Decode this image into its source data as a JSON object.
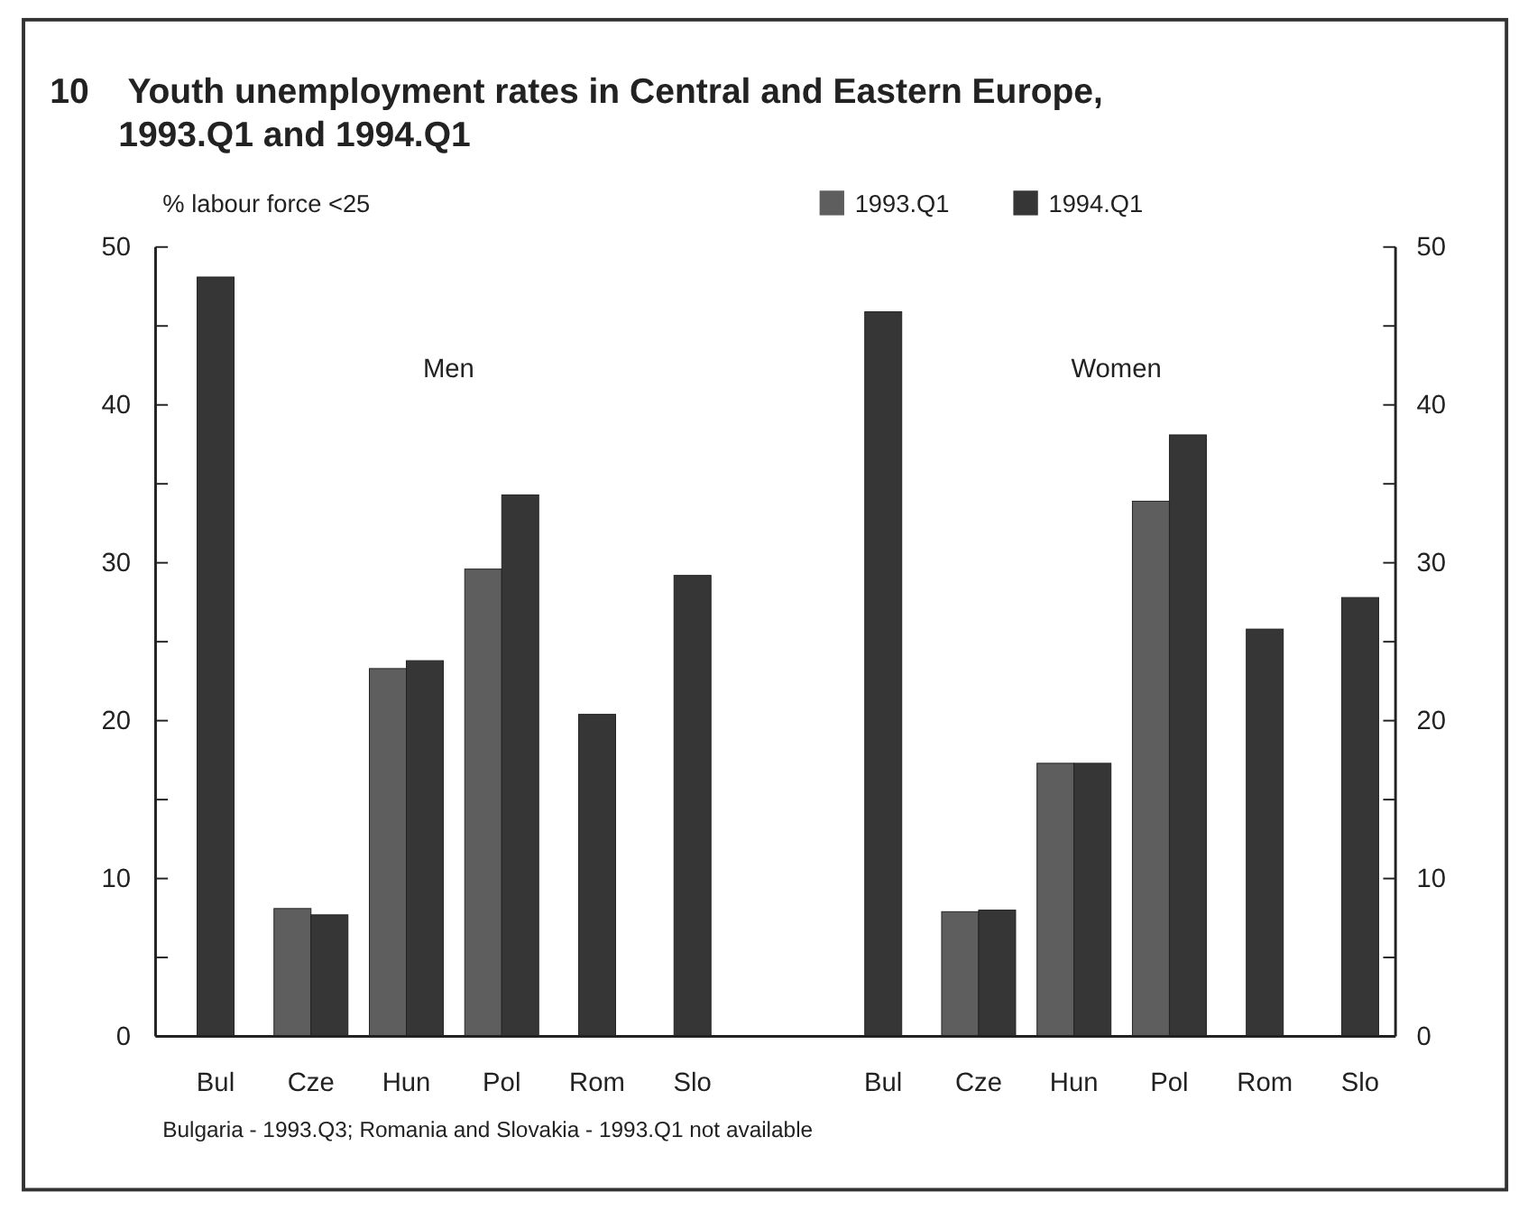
{
  "chart_data": {
    "type": "bar",
    "title": "10    Youth unemployment rates in Central and Eastern Europe,\n       1993.Q1 and 1994.Q1",
    "ylabel": "% labour force <25",
    "categories": [
      "Bul",
      "Cze",
      "Hun",
      "Pol",
      "Rom",
      "Slo",
      null,
      "Bul",
      "Cze",
      "Hun",
      "Pol",
      "Rom",
      "Slo"
    ],
    "series": [
      {
        "name": "1993.Q1",
        "color": "#5e5e5e",
        "values": [
          null,
          8.1,
          23.3,
          29.6,
          null,
          null,
          null,
          null,
          7.9,
          17.3,
          33.9,
          null,
          null
        ]
      },
      {
        "name": "1994.Q1",
        "color": "#363636",
        "values": [
          48.1,
          7.7,
          23.8,
          34.3,
          20.4,
          29.2,
          null,
          45.9,
          8.0,
          17.3,
          38.1,
          25.8,
          27.8
        ]
      }
    ],
    "ylim": [
      0,
      50
    ],
    "yticks": [
      0,
      {
        "value": 5,
        "label": null
      },
      10,
      {
        "value": 15,
        "label": null
      },
      20,
      {
        "value": 25,
        "label": null
      },
      30,
      {
        "value": 35,
        "label": null
      },
      40,
      {
        "value": 45,
        "label": null
      },
      50
    ],
    "y2lim": [
      0,
      50
    ],
    "y2ticks": [
      0,
      {
        "value": 5,
        "label": null
      },
      10,
      {
        "value": 15,
        "label": null
      },
      20,
      {
        "value": 25,
        "label": null
      },
      30,
      {
        "value": 35,
        "label": null
      },
      40,
      {
        "value": 45,
        "label": null
      },
      50
    ],
    "legend": "top right",
    "annotations": [
      "Men",
      "Women",
      "Bulgaria - 1993.Q3; Romania and Slovakia - 1993.Q1 not available"
    ]
  }
}
